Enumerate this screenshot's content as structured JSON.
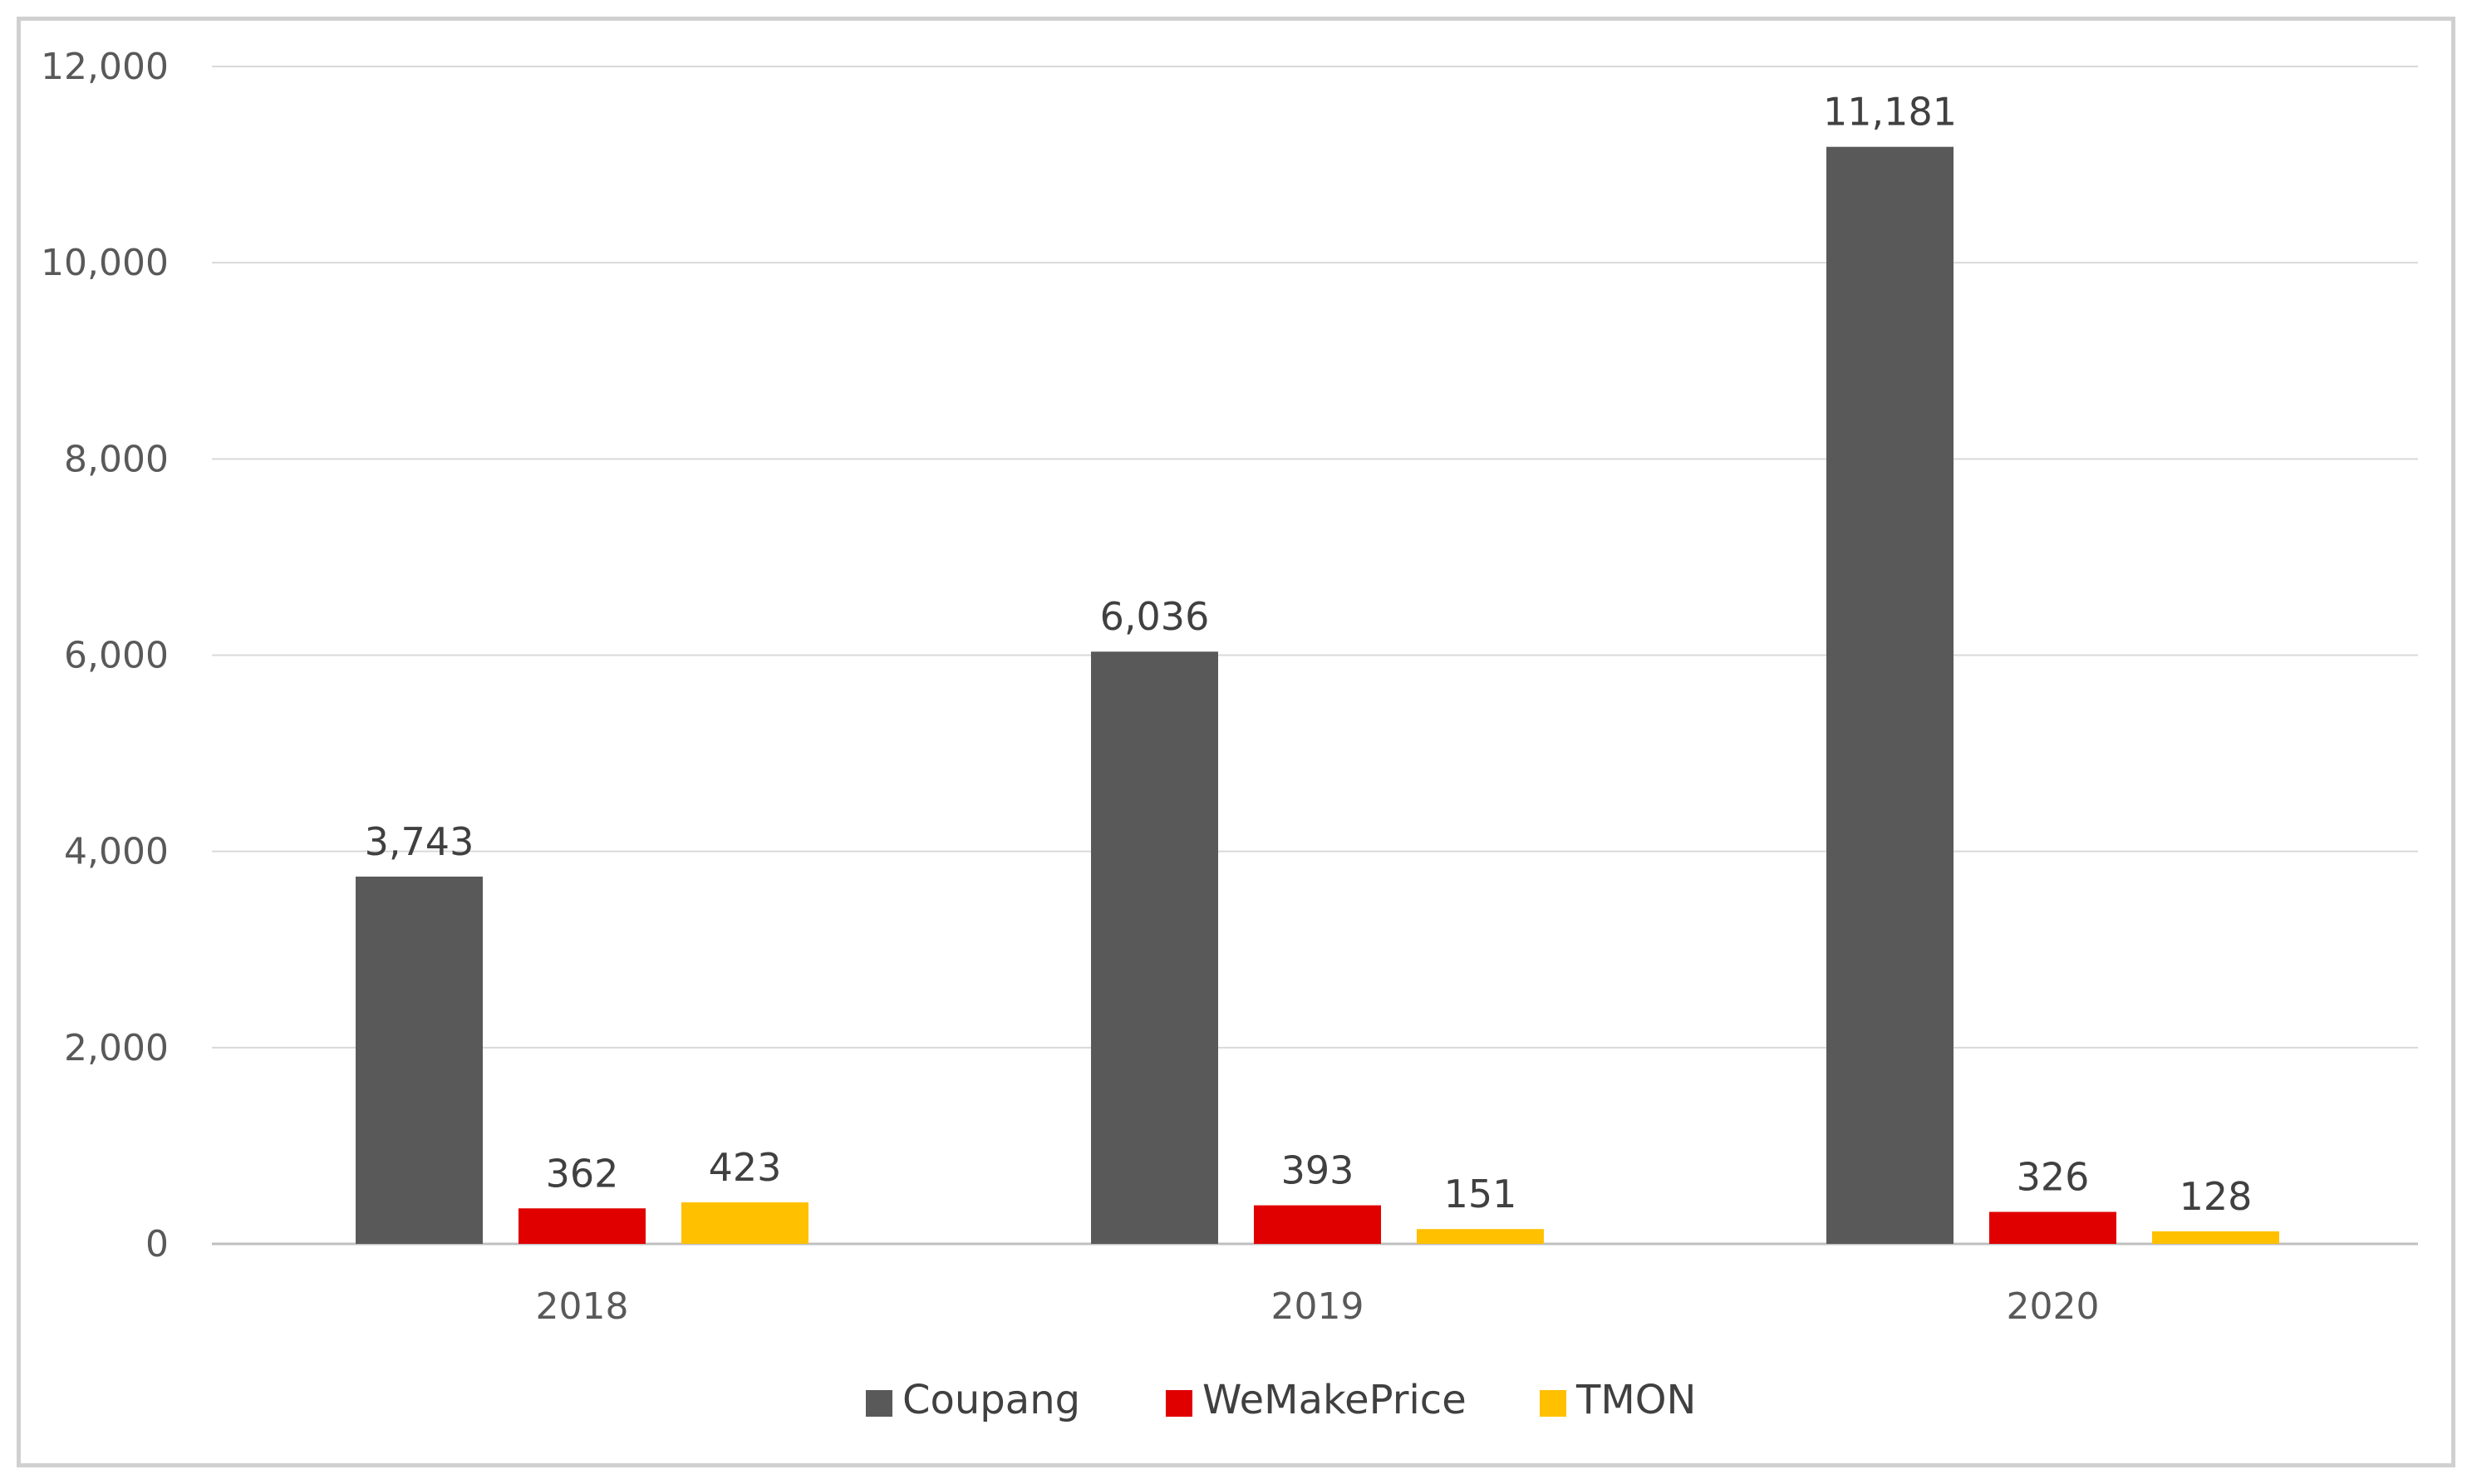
{
  "chart_data": {
    "type": "bar",
    "categories": [
      "2018",
      "2019",
      "2020"
    ],
    "series": [
      {
        "name": "Coupang",
        "color": "#595959",
        "values": [
          3743,
          6036,
          11181
        ],
        "labels": [
          "3,743",
          "6,036",
          "11,181"
        ]
      },
      {
        "name": "WeMakePrice",
        "color": "#e00000",
        "values": [
          362,
          393,
          326
        ],
        "labels": [
          "362",
          "393",
          "326"
        ]
      },
      {
        "name": "TMON",
        "color": "#ffc000",
        "values": [
          423,
          151,
          128
        ],
        "labels": [
          "423",
          "151",
          "128"
        ]
      }
    ],
    "ylim": [
      0,
      12000
    ],
    "yticks": [
      0,
      2000,
      4000,
      6000,
      8000,
      10000,
      12000
    ],
    "ytick_labels": [
      "0",
      "2,000",
      "4,000",
      "6,000",
      "8,000",
      "10,000",
      "12,000"
    ],
    "grid": true,
    "gridline_color": "#d9d9d9",
    "legend_position": "bottom-center",
    "title": "",
    "xlabel": "",
    "ylabel": ""
  }
}
